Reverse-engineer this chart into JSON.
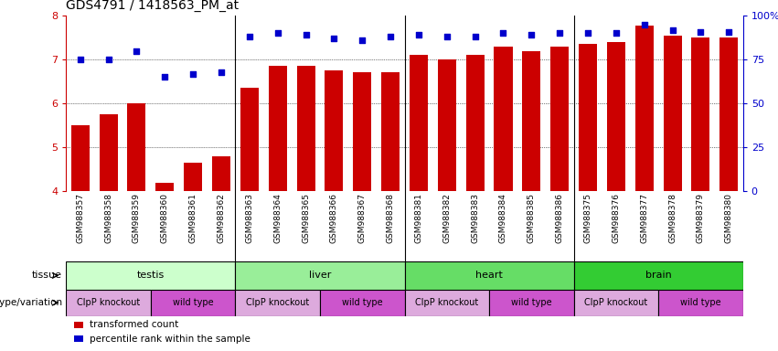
{
  "title": "GDS4791 / 1418563_PM_at",
  "samples": [
    "GSM988357",
    "GSM988358",
    "GSM988359",
    "GSM988360",
    "GSM988361",
    "GSM988362",
    "GSM988363",
    "GSM988364",
    "GSM988365",
    "GSM988366",
    "GSM988367",
    "GSM988368",
    "GSM988381",
    "GSM988382",
    "GSM988383",
    "GSM988384",
    "GSM988385",
    "GSM988386",
    "GSM988375",
    "GSM988376",
    "GSM988377",
    "GSM988378",
    "GSM988379",
    "GSM988380"
  ],
  "bar_values": [
    5.5,
    5.75,
    6.0,
    4.2,
    4.65,
    4.8,
    6.35,
    6.85,
    6.85,
    6.75,
    6.72,
    6.72,
    7.1,
    7.0,
    7.1,
    7.3,
    7.2,
    7.3,
    7.35,
    7.4,
    7.78,
    7.55,
    7.5,
    7.5
  ],
  "percentile_values": [
    75,
    75,
    80,
    65,
    67,
    68,
    88,
    90,
    89,
    87,
    86,
    88,
    89,
    88,
    88,
    90,
    89,
    90,
    90,
    90,
    95,
    92,
    91,
    91
  ],
  "bar_color": "#cc0000",
  "dot_color": "#0000cc",
  "ylim_left": [
    4,
    8
  ],
  "ylim_right": [
    0,
    100
  ],
  "yticks_left": [
    4,
    5,
    6,
    7,
    8
  ],
  "yticks_right": [
    0,
    25,
    50,
    75,
    100
  ],
  "ytick_labels_right": [
    "0",
    "25",
    "50",
    "75",
    "100%"
  ],
  "grid_lines": [
    5,
    6,
    7
  ],
  "tissues": [
    {
      "label": "testis",
      "start": 0,
      "end": 6,
      "color": "#ccffcc"
    },
    {
      "label": "liver",
      "start": 6,
      "end": 12,
      "color": "#99ee99"
    },
    {
      "label": "heart",
      "start": 12,
      "end": 18,
      "color": "#66dd66"
    },
    {
      "label": "brain",
      "start": 18,
      "end": 24,
      "color": "#33cc33"
    }
  ],
  "genotypes": [
    {
      "label": "ClpP knockout",
      "start": 0,
      "end": 3,
      "color": "#ddaadd"
    },
    {
      "label": "wild type",
      "start": 3,
      "end": 6,
      "color": "#cc55cc"
    },
    {
      "label": "ClpP knockout",
      "start": 6,
      "end": 9,
      "color": "#ddaadd"
    },
    {
      "label": "wild type",
      "start": 9,
      "end": 12,
      "color": "#cc55cc"
    },
    {
      "label": "ClpP knockout",
      "start": 12,
      "end": 15,
      "color": "#ddaadd"
    },
    {
      "label": "wild type",
      "start": 15,
      "end": 18,
      "color": "#cc55cc"
    },
    {
      "label": "ClpP knockout",
      "start": 18,
      "end": 21,
      "color": "#ddaadd"
    },
    {
      "label": "wild type",
      "start": 21,
      "end": 24,
      "color": "#cc55cc"
    }
  ],
  "legend_items": [
    {
      "label": "transformed count",
      "color": "#cc0000"
    },
    {
      "label": "percentile rank within the sample",
      "color": "#0000cc"
    }
  ],
  "tissue_row_label": "tissue",
  "genotype_row_label": "genotype/variation",
  "background_color": "#ffffff",
  "separators": [
    6,
    12,
    18
  ]
}
